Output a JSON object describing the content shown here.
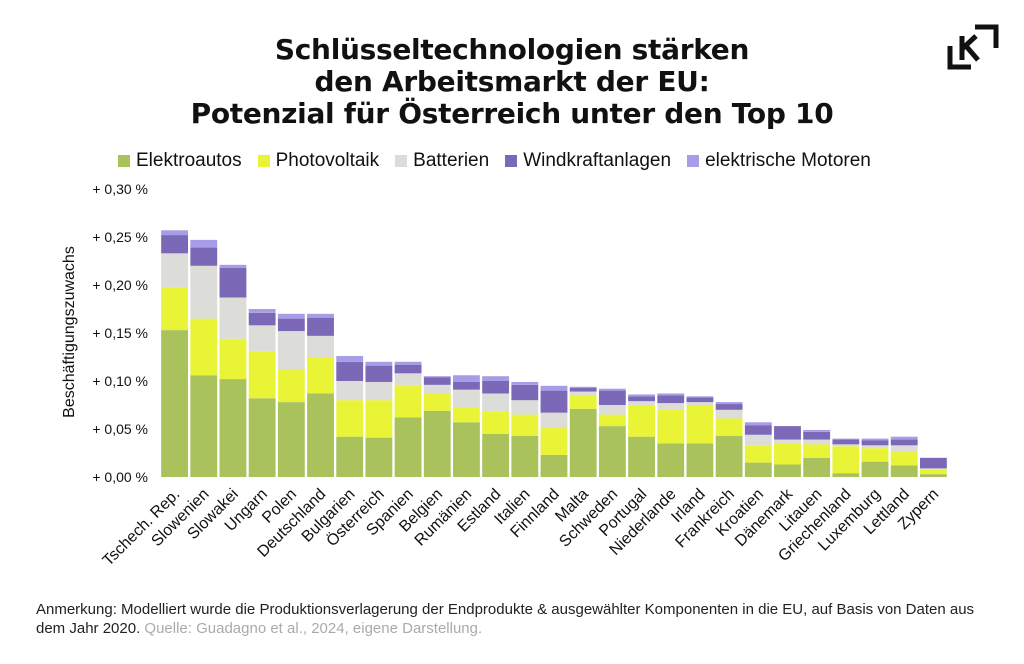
{
  "title_lines": [
    "Schlüsseltechnologien stärken",
    "den Arbeitsmarkt der EU:",
    "Potenzial für Österreich unter den Top 10"
  ],
  "logo_text": "K",
  "note": {
    "label": "Anmerkung:",
    "text": " Modelliert wurde die Produktionsverlagerung der Endprodukte & ausgewählter Komponenten in die EU, auf Basis von Daten aus dem Jahr 2020.",
    "source_label": "Quelle:",
    "source_text": " Guadagno et al., 2024, eigene Darstellung."
  },
  "chart_data": {
    "type": "bar",
    "stacked": true,
    "ylabel": "Beschäftigungszuwachs",
    "ylim": [
      0,
      0.3
    ],
    "yticks": [
      0,
      0.05,
      0.1,
      0.15,
      0.2,
      0.25,
      0.3
    ],
    "ytick_labels": [
      "+ 0,00 %",
      "+ 0,05 %",
      "+ 0,10 %",
      "+ 0,15 %",
      "+ 0,20 %",
      "+ 0,25 %",
      "+ 0,30 %"
    ],
    "legend_position": "top",
    "grid": false,
    "categories": [
      "Tschech. Rep.",
      "Slowenien",
      "Slowakei",
      "Ungarn",
      "Polen",
      "Deutschland",
      "Bulgarien",
      "Österreich",
      "Spanien",
      "Belgien",
      "Rumänien",
      "Estland",
      "Italien",
      "Finnland",
      "Malta",
      "Schweden",
      "Portugal",
      "Niederlande",
      "Irland",
      "Frankreich",
      "Kroatien",
      "Dänemark",
      "Litauen",
      "Griechenland",
      "Luxemburg",
      "Lettland",
      "Zypern"
    ],
    "series": [
      {
        "name": "Elektroautos",
        "color": "#a9c25c",
        "values": [
          0.153,
          0.106,
          0.102,
          0.082,
          0.078,
          0.087,
          0.042,
          0.041,
          0.062,
          0.069,
          0.057,
          0.045,
          0.043,
          0.023,
          0.071,
          0.053,
          0.042,
          0.035,
          0.035,
          0.043,
          0.015,
          0.013,
          0.02,
          0.004,
          0.016,
          0.012,
          0.003
        ]
      },
      {
        "name": "Photovoltaik",
        "color": "#e9f437",
        "values": [
          0.044,
          0.059,
          0.042,
          0.049,
          0.034,
          0.037,
          0.038,
          0.039,
          0.033,
          0.018,
          0.016,
          0.023,
          0.022,
          0.028,
          0.014,
          0.012,
          0.032,
          0.035,
          0.04,
          0.018,
          0.018,
          0.022,
          0.014,
          0.028,
          0.014,
          0.014,
          0.005
        ]
      },
      {
        "name": "Batterien",
        "color": "#dcdcd8",
        "values": [
          0.036,
          0.055,
          0.043,
          0.027,
          0.04,
          0.023,
          0.02,
          0.019,
          0.013,
          0.009,
          0.018,
          0.019,
          0.015,
          0.016,
          0.004,
          0.01,
          0.005,
          0.007,
          0.003,
          0.009,
          0.011,
          0.004,
          0.005,
          0.002,
          0.003,
          0.007,
          0.001
        ]
      },
      {
        "name": "Windkraftanlagen",
        "color": "#7b69b8",
        "values": [
          0.019,
          0.019,
          0.031,
          0.013,
          0.013,
          0.019,
          0.02,
          0.017,
          0.009,
          0.008,
          0.008,
          0.013,
          0.016,
          0.023,
          0.004,
          0.015,
          0.005,
          0.008,
          0.005,
          0.006,
          0.01,
          0.014,
          0.008,
          0.005,
          0.005,
          0.006,
          0.011
        ]
      },
      {
        "name": "elektrische Motoren",
        "color": "#a79de6",
        "values": [
          0.005,
          0.008,
          0.003,
          0.004,
          0.005,
          0.004,
          0.006,
          0.004,
          0.003,
          0.001,
          0.007,
          0.005,
          0.003,
          0.005,
          0.001,
          0.002,
          0.002,
          0.002,
          0.001,
          0.002,
          0.003,
          0.0,
          0.002,
          0.001,
          0.002,
          0.003,
          0.0
        ]
      }
    ]
  }
}
